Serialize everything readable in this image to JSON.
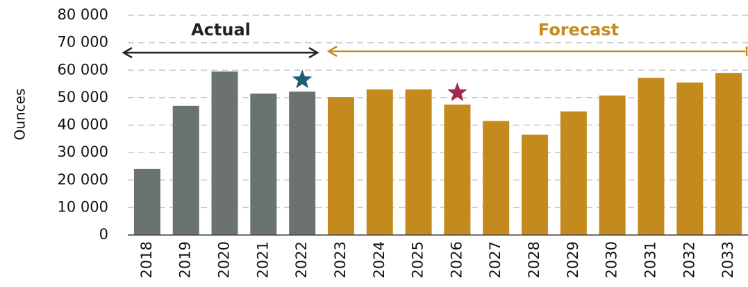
{
  "chart_data": {
    "type": "bar",
    "y_label": "Ounces",
    "categories": [
      "2018",
      "2019",
      "2020",
      "2021",
      "2022",
      "2023",
      "2024",
      "2025",
      "2026",
      "2027",
      "2028",
      "2029",
      "2030",
      "2031",
      "2032",
      "2033"
    ],
    "values": [
      24000,
      47000,
      59500,
      51500,
      52200,
      50200,
      53000,
      53000,
      47500,
      41500,
      36500,
      45000,
      50800,
      57200,
      55500,
      59000
    ],
    "colors": [
      "#6b7372",
      "#6b7372",
      "#6b7372",
      "#6b7372",
      "#6b7372",
      "#c48a1e",
      "#c48a1e",
      "#c48a1e",
      "#c48a1e",
      "#c48a1e",
      "#c48a1e",
      "#c48a1e",
      "#c48a1e",
      "#c48a1e",
      "#c48a1e",
      "#c48a1e"
    ],
    "ylim": [
      0,
      80000
    ],
    "yticks": [
      {
        "value": 0,
        "label": "0"
      },
      {
        "value": 10000,
        "label": "10 000"
      },
      {
        "value": 20000,
        "label": "20 000"
      },
      {
        "value": 30000,
        "label": "30 000"
      },
      {
        "value": 40000,
        "label": "40 000"
      },
      {
        "value": 50000,
        "label": "50 000"
      },
      {
        "value": 60000,
        "label": "60 000"
      },
      {
        "value": 70000,
        "label": "70 000"
      },
      {
        "value": 80000,
        "label": "80 000"
      }
    ],
    "grid": true,
    "annotations": [
      {
        "text": "Actual",
        "color": "#222222"
      },
      {
        "text": "Forecast",
        "color": "#c48a1e"
      }
    ],
    "stars": [
      {
        "category": "2022",
        "color": "#1f5f75"
      },
      {
        "category": "2026",
        "color": "#a3294f"
      }
    ]
  }
}
